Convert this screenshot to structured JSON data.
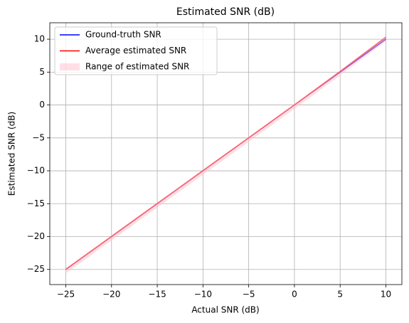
{
  "chart_data": {
    "type": "line",
    "title": "Estimated SNR (dB)",
    "x_label": "Actual SNR (dB)",
    "y_label": "Estimated SNR (dB)",
    "x": [
      -25,
      -20,
      -15,
      -10,
      -5,
      0,
      5,
      10
    ],
    "series": [
      {
        "name": "Ground-truth SNR",
        "color": "#0000ff",
        "values": [
          -25,
          -20,
          -15,
          -10,
          -5,
          0,
          5,
          10
        ]
      },
      {
        "name": "Average estimated SNR",
        "color": "#ff0000",
        "values": [
          -25.0,
          -20.0,
          -15.0,
          -10.0,
          -5.0,
          0.0,
          5.1,
          10.3
        ]
      },
      {
        "name": "Range of estimated SNR",
        "color": "#ffc0cb",
        "lower": [
          -25.6,
          -20.6,
          -15.6,
          -10.6,
          -5.6,
          -0.6,
          4.5,
          9.7
        ],
        "upper": [
          -24.8,
          -19.8,
          -14.8,
          -9.8,
          -4.8,
          0.2,
          5.3,
          10.5
        ]
      }
    ],
    "xlim": [
      -26.75,
      11.75
    ],
    "ylim": [
      -27.3,
      12.5
    ],
    "xticks": [
      {
        "value": -25,
        "label": "−25"
      },
      {
        "value": -20,
        "label": "−20"
      },
      {
        "value": -15,
        "label": "−15"
      },
      {
        "value": -10,
        "label": "−10"
      },
      {
        "value": -5,
        "label": "−5"
      },
      0,
      5,
      10
    ],
    "yticks": [
      {
        "value": -25,
        "label": "−25"
      },
      {
        "value": -20,
        "label": "−20"
      },
      {
        "value": -15,
        "label": "−15"
      },
      {
        "value": -10,
        "label": "−10"
      },
      {
        "value": -5,
        "label": "−5"
      },
      0,
      5,
      10
    ],
    "grid": true,
    "legend": "upper-left"
  }
}
